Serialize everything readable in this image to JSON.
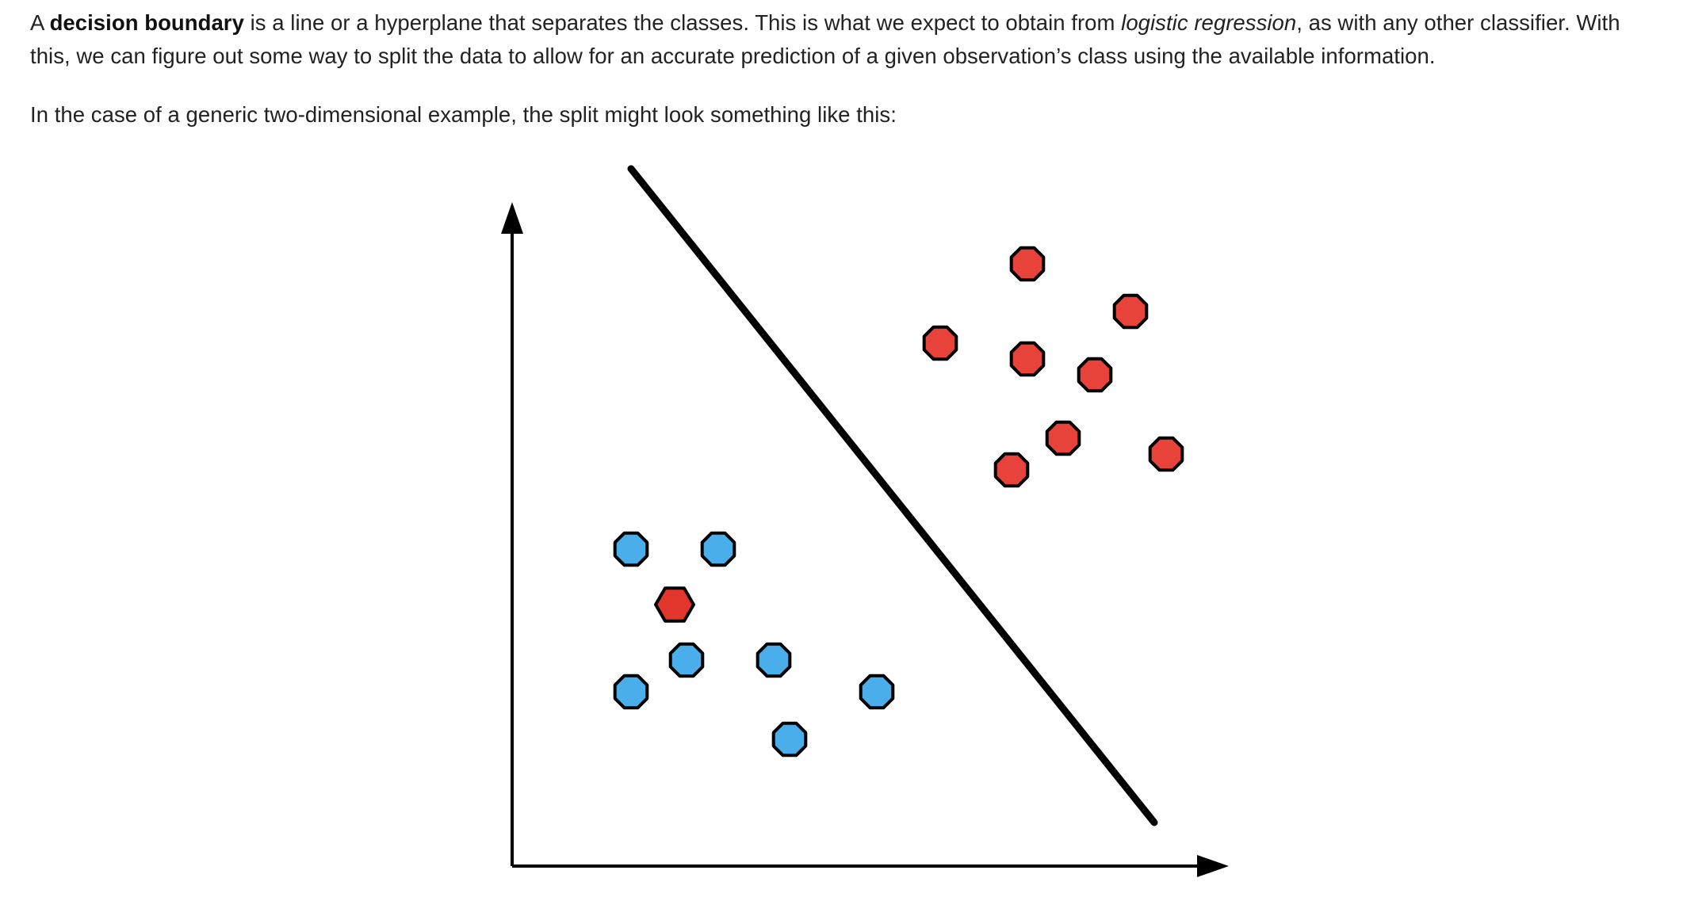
{
  "article": {
    "paragraph1": {
      "lead": "A ",
      "term": "decision boundary",
      "mid": " is a line or a hyperplane that separates the classes. This is what we expect to obtain from ",
      "method": "logistic regression",
      "tail": ", as with any other classifier. With this, we can figure out some way to split the data to allow for an accurate prediction of a given observation’s class using the available information."
    },
    "paragraph2": "In the case of a generic two-dimensional example, the split might look something like this:"
  },
  "figure": {
    "colors": {
      "class_red": "#e8433a",
      "class_blue": "#4aaeea",
      "outlier_red": "#e2352b",
      "ink": "#000000"
    },
    "boundary_line": {
      "from": [
        1.5,
        8.8
      ],
      "to": [
        8.1,
        0.55
      ]
    },
    "points": [
      {
        "class": "red",
        "x": 6.5,
        "y": 7.6
      },
      {
        "class": "red",
        "x": 7.8,
        "y": 7.0
      },
      {
        "class": "red",
        "x": 5.4,
        "y": 6.6
      },
      {
        "class": "red",
        "x": 6.5,
        "y": 6.4
      },
      {
        "class": "red",
        "x": 7.35,
        "y": 6.2
      },
      {
        "class": "red",
        "x": 6.95,
        "y": 5.4
      },
      {
        "class": "red",
        "x": 8.25,
        "y": 5.2
      },
      {
        "class": "red",
        "x": 6.3,
        "y": 5.0
      },
      {
        "class": "blue",
        "x": 1.5,
        "y": 4.0
      },
      {
        "class": "blue",
        "x": 2.6,
        "y": 4.0
      },
      {
        "class": "red",
        "x": 2.05,
        "y": 3.3,
        "outlier": true
      },
      {
        "class": "blue",
        "x": 2.2,
        "y": 2.6
      },
      {
        "class": "blue",
        "x": 3.3,
        "y": 2.6
      },
      {
        "class": "blue",
        "x": 1.5,
        "y": 2.2
      },
      {
        "class": "blue",
        "x": 4.6,
        "y": 2.2
      },
      {
        "class": "blue",
        "x": 3.5,
        "y": 1.6
      }
    ]
  }
}
